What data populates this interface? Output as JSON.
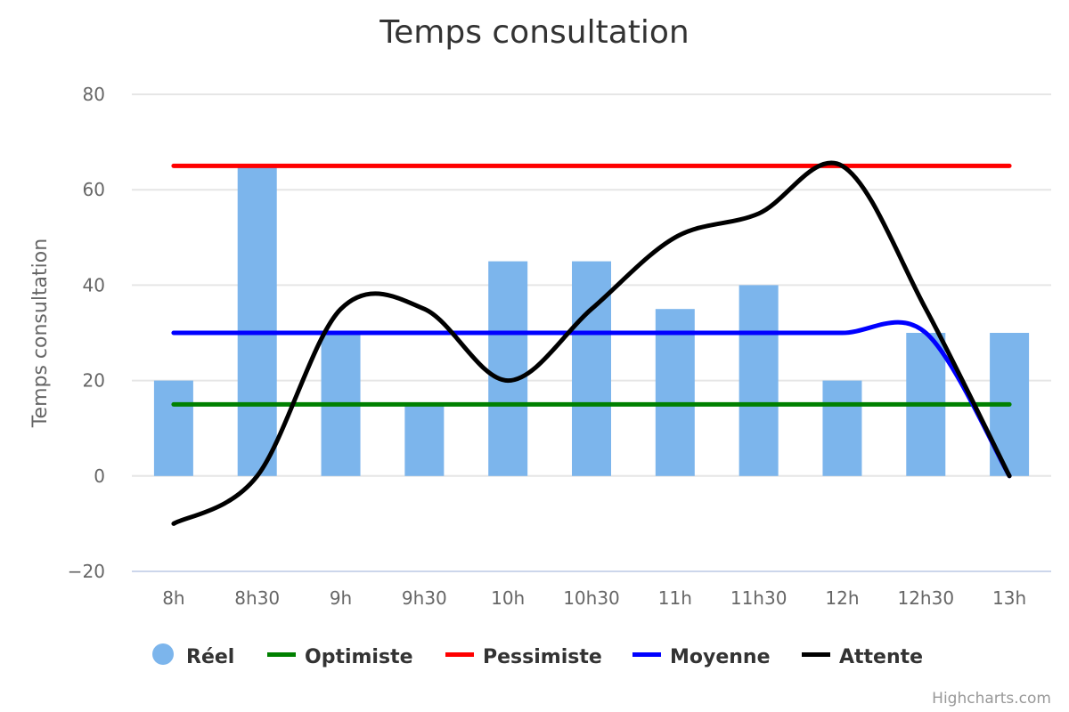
{
  "chart_data": {
    "type": "bar",
    "title": "Temps consultation",
    "ylabel": "Temps consultation",
    "ylim": [
      -20,
      80
    ],
    "yticks": [
      -20,
      0,
      20,
      40,
      60,
      80
    ],
    "grid": true,
    "legend_position": "bottom",
    "categories": [
      "8h",
      "8h30",
      "9h",
      "9h30",
      "10h",
      "10h30",
      "11h",
      "11h30",
      "12h",
      "12h30",
      "13h"
    ],
    "series": [
      {
        "name": "Réel",
        "type": "bar",
        "color": "#7cb5ec",
        "values": [
          20,
          65,
          30,
          15,
          45,
          45,
          35,
          40,
          20,
          30,
          30
        ]
      },
      {
        "name": "Optimiste",
        "type": "line",
        "color": "#008000",
        "values": [
          15,
          15,
          15,
          15,
          15,
          15,
          15,
          15,
          15,
          15,
          15
        ]
      },
      {
        "name": "Pessimiste",
        "type": "line",
        "color": "#ff0000",
        "values": [
          65,
          65,
          65,
          65,
          65,
          65,
          65,
          65,
          65,
          65,
          65
        ]
      },
      {
        "name": "Moyenne",
        "type": "spline",
        "color": "#0000ff",
        "values": [
          30,
          30,
          30,
          30,
          30,
          30,
          30,
          30,
          30,
          30,
          0
        ]
      },
      {
        "name": "Attente",
        "type": "spline",
        "color": "#000000",
        "values": [
          -10,
          0,
          35,
          35,
          20,
          35,
          50,
          55,
          65,
          35,
          0
        ]
      }
    ]
  },
  "credits": "Highcharts.com"
}
